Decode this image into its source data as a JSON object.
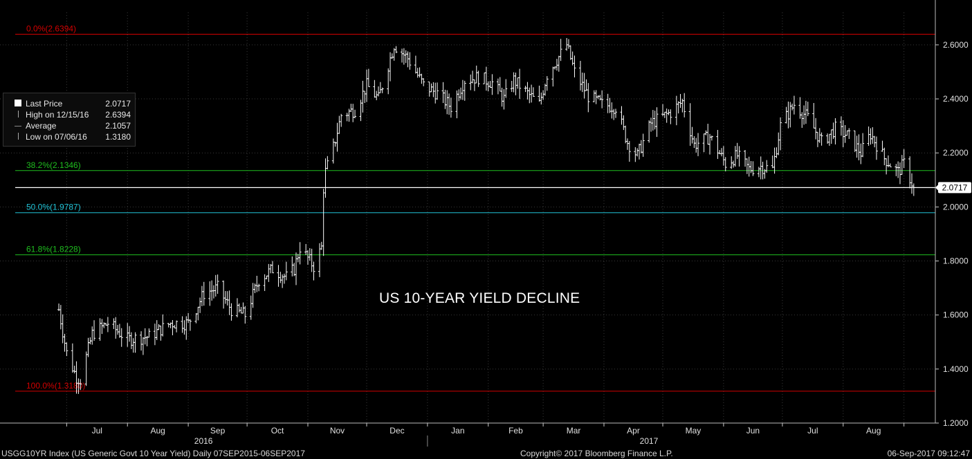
{
  "legend": {
    "last_price_label": "Last Price",
    "last_price_value": "2.0717",
    "high_label": "High on 12/15/16",
    "high_value": "2.6394",
    "average_label": "Average",
    "average_value": "2.1057",
    "low_label": "Low on 07/06/16",
    "low_value": "1.3180"
  },
  "annotation": "US 10-YEAR YIELD DECLINE",
  "footer": {
    "left": "USGG10YR Index (US Generic Govt 10 Year Yield)  Daily 07SEP2015-06SEP2017",
    "center": "Copyright© 2017 Bloomberg Finance L.P.",
    "right": "06-Sep-2017 09:12:47"
  },
  "colors": {
    "fib_red": "#d40000",
    "fib_green": "#1fbf1f",
    "fib_cyan": "#21c4d8",
    "bars": "#ffffff",
    "grid": "#3a3a3a"
  },
  "chart_data": {
    "type": "ohlc",
    "ylim": [
      1.2,
      2.72
    ],
    "yticks": [
      "2.6000",
      "2.4000",
      "2.2000",
      "2.0000",
      "1.8000",
      "1.6000",
      "1.4000",
      "1.2000"
    ],
    "last_value": "2.0717",
    "x_months": [
      "Jul",
      "Aug",
      "Sep",
      "Oct",
      "Nov",
      "Dec",
      "Jan",
      "Feb",
      "Mar",
      "Apr",
      "May",
      "Jun",
      "Jul",
      "Aug"
    ],
    "x_years": [
      "2016",
      "2017"
    ],
    "fib_levels": [
      {
        "label": "0.0%(2.6394)",
        "value": 2.6394,
        "color": "red"
      },
      {
        "label": "38.2%(2.1346)",
        "value": 2.1346,
        "color": "green"
      },
      {
        "label": "50.0%(1.9787)",
        "value": 1.9787,
        "color": "cyan"
      },
      {
        "label": "61.8%(1.8228)",
        "value": 1.8228,
        "color": "green"
      },
      {
        "label": "100.0%(1.3180)",
        "value": 1.318,
        "color": "red"
      }
    ],
    "anchors": [
      [
        "2016-06-27",
        1.62
      ],
      [
        "2016-07-01",
        1.46
      ],
      [
        "2016-07-06",
        1.37
      ],
      [
        "2016-07-08",
        1.36
      ],
      [
        "2016-07-14",
        1.53
      ],
      [
        "2016-07-22",
        1.57
      ],
      [
        "2016-08-01",
        1.51
      ],
      [
        "2016-08-12",
        1.52
      ],
      [
        "2016-08-23",
        1.57
      ],
      [
        "2016-09-01",
        1.57
      ],
      [
        "2016-09-09",
        1.68
      ],
      [
        "2016-09-16",
        1.7
      ],
      [
        "2016-09-23",
        1.62
      ],
      [
        "2016-09-30",
        1.6
      ],
      [
        "2016-10-07",
        1.73
      ],
      [
        "2016-10-14",
        1.77
      ],
      [
        "2016-10-21",
        1.74
      ],
      [
        "2016-10-25",
        1.77
      ],
      [
        "2016-10-28",
        1.85
      ],
      [
        "2016-11-04",
        1.78
      ],
      [
        "2016-11-08",
        1.85
      ],
      [
        "2016-11-09",
        2.07
      ],
      [
        "2016-11-10",
        2.13
      ],
      [
        "2016-11-14",
        2.22
      ],
      [
        "2016-11-18",
        2.34
      ],
      [
        "2016-11-25",
        2.36
      ],
      [
        "2016-12-01",
        2.45
      ],
      [
        "2016-12-07",
        2.4
      ],
      [
        "2016-12-15",
        2.6
      ],
      [
        "2016-12-22",
        2.55
      ],
      [
        "2016-12-30",
        2.45
      ],
      [
        "2017-01-06",
        2.42
      ],
      [
        "2017-01-13",
        2.37
      ],
      [
        "2017-01-20",
        2.47
      ],
      [
        "2017-01-27",
        2.48
      ],
      [
        "2017-02-03",
        2.46
      ],
      [
        "2017-02-09",
        2.4
      ],
      [
        "2017-02-14",
        2.47
      ],
      [
        "2017-02-21",
        2.42
      ],
      [
        "2017-02-27",
        2.38
      ],
      [
        "2017-03-03",
        2.49
      ],
      [
        "2017-03-13",
        2.6
      ],
      [
        "2017-03-17",
        2.5
      ],
      [
        "2017-03-24",
        2.41
      ],
      [
        "2017-03-31",
        2.38
      ],
      [
        "2017-04-07",
        2.37
      ],
      [
        "2017-04-13",
        2.24
      ],
      [
        "2017-04-18",
        2.19
      ],
      [
        "2017-04-25",
        2.31
      ],
      [
        "2017-05-05",
        2.35
      ],
      [
        "2017-05-11",
        2.39
      ],
      [
        "2017-05-17",
        2.23
      ],
      [
        "2017-05-25",
        2.26
      ],
      [
        "2017-06-02",
        2.16
      ],
      [
        "2017-06-08",
        2.19
      ],
      [
        "2017-06-14",
        2.14
      ],
      [
        "2017-06-20",
        2.15
      ],
      [
        "2017-06-26",
        2.14
      ],
      [
        "2017-06-30",
        2.3
      ],
      [
        "2017-07-07",
        2.38
      ],
      [
        "2017-07-14",
        2.33
      ],
      [
        "2017-07-21",
        2.24
      ],
      [
        "2017-07-28",
        2.29
      ],
      [
        "2017-08-04",
        2.26
      ],
      [
        "2017-08-10",
        2.2
      ],
      [
        "2017-08-15",
        2.27
      ],
      [
        "2017-08-22",
        2.18
      ],
      [
        "2017-08-29",
        2.13
      ],
      [
        "2017-09-01",
        2.16
      ],
      [
        "2017-09-06",
        2.0717
      ]
    ]
  }
}
